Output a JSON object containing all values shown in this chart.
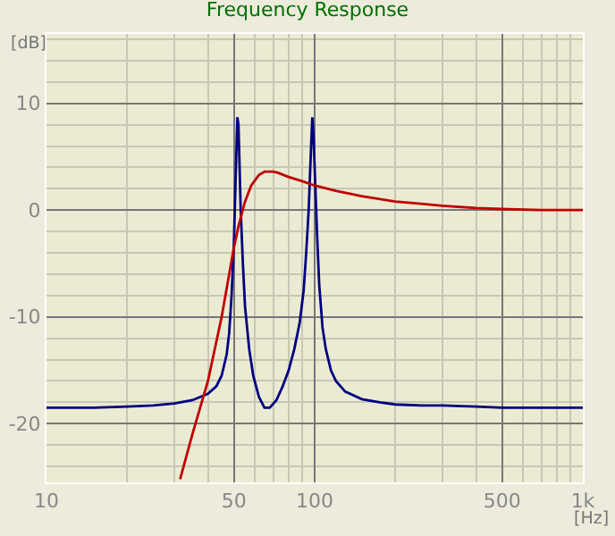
{
  "chart_data": {
    "type": "line",
    "title": "Frequency Response",
    "xlabel": "[Hz]",
    "ylabel": "[dB]",
    "log": "x",
    "grid": true,
    "marker": "none",
    "line_style": "solid",
    "xlim": [
      10,
      1000
    ],
    "xticks": [
      10,
      50,
      100,
      500,
      {
        "value": 1000,
        "label": "1k"
      }
    ],
    "ylim": [
      -25.5,
      16.5
    ],
    "yticks": [
      -20,
      -10,
      0,
      10
    ],
    "series": [
      {
        "color": "#000080",
        "x": [
          10,
          15,
          20,
          25,
          30,
          35,
          40,
          43,
          45,
          47,
          48,
          49,
          50,
          50.5,
          51,
          51.5,
          52,
          52.5,
          53,
          54,
          55,
          57,
          59,
          62,
          65,
          68,
          72,
          76,
          80,
          84,
          88,
          91,
          93,
          95,
          96,
          97,
          98,
          99,
          100,
          102,
          104,
          107,
          110,
          115,
          120,
          130,
          150,
          175,
          200,
          250,
          300,
          400,
          500,
          700,
          1000
        ],
        "values": [
          -18.5,
          -18.5,
          -18.4,
          -18.3,
          -18.1,
          -17.8,
          -17.2,
          -16.5,
          -15.5,
          -13.5,
          -11.5,
          -8,
          -3,
          1,
          5,
          8.7,
          8,
          4,
          0,
          -5,
          -9,
          -13,
          -15.5,
          -17.5,
          -18.5,
          -18.5,
          -17.8,
          -16.5,
          -15,
          -13,
          -10.5,
          -7.5,
          -4,
          0,
          3,
          6,
          8.7,
          7,
          4,
          -2,
          -7,
          -11,
          -13,
          -15,
          -16,
          -17,
          -17.7,
          -18,
          -18.2,
          -18.3,
          -18.3,
          -18.4,
          -18.5,
          -18.5,
          -18.5
        ]
      },
      {
        "color": "#c00000",
        "x": [
          31.5,
          35,
          40,
          45,
          48,
          50,
          52,
          55,
          58,
          62,
          65,
          70,
          73,
          80,
          90,
          100,
          120,
          150,
          200,
          250,
          300,
          400,
          500,
          700,
          1000
        ],
        "values": [
          -25.2,
          -21,
          -16,
          -10,
          -6,
          -3.5,
          -1.5,
          0.8,
          2.3,
          3.3,
          3.6,
          3.6,
          3.5,
          3.1,
          2.7,
          2.3,
          1.8,
          1.3,
          0.8,
          0.6,
          0.4,
          0.2,
          0.1,
          0,
          0
        ]
      }
    ]
  }
}
